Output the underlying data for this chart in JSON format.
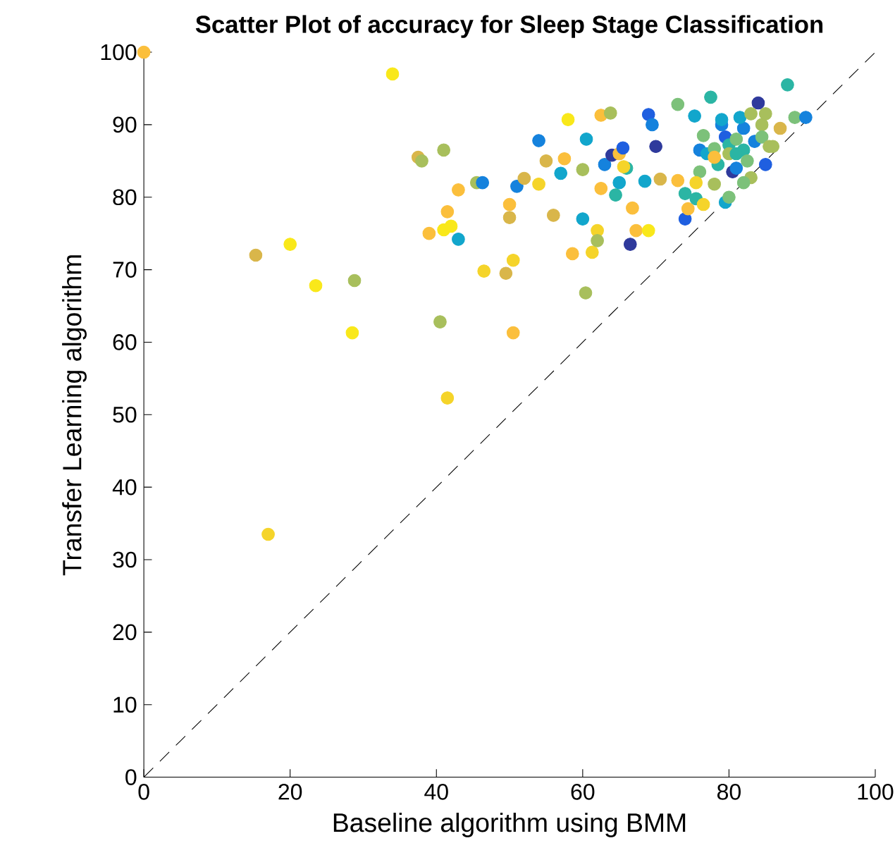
{
  "chart_data": {
    "type": "scatter",
    "title": "Scatter Plot of accuracy for Sleep Stage Classification",
    "xlabel": "Baseline algorithm using BMM",
    "ylabel": "Transfer Learning algorithm",
    "xlim": [
      0,
      100
    ],
    "ylim": [
      0,
      100
    ],
    "xticks": [
      0,
      20,
      40,
      60,
      80,
      100
    ],
    "yticks": [
      0,
      10,
      20,
      30,
      40,
      50,
      60,
      70,
      80,
      90,
      100
    ],
    "marker": "circle",
    "series": [
      {
        "x": [
          0,
          34,
          15.3,
          20,
          23.5,
          28.8,
          28.5,
          17,
          37.5,
          38,
          41,
          39,
          40.5,
          41,
          41.5,
          41.5,
          42,
          43,
          43,
          45.5,
          46.3,
          46.5,
          49.5,
          50,
          50,
          50.5,
          50.5,
          51,
          52,
          54,
          54,
          55,
          56,
          57.5,
          57,
          58,
          58.6,
          60,
          60,
          60.5,
          60.4,
          61.3,
          62,
          62,
          62.5,
          63.8,
          63,
          62.5,
          64,
          65,
          65,
          65.5,
          64.5,
          66,
          66.5,
          67.3,
          66.8,
          65.6,
          69,
          69.5,
          70,
          68.5,
          70.6,
          69,
          73,
          73,
          74,
          74,
          74.4,
          75.3,
          76.5,
          76,
          75.5,
          76.5,
          77.5,
          77,
          78,
          78,
          78.5,
          79,
          79.5,
          80,
          80.5,
          81,
          81,
          82,
          82,
          82.5,
          83,
          83.5,
          84,
          84.5,
          84.5,
          85,
          85.5,
          86,
          85,
          87,
          88,
          89,
          90.5,
          79,
          81.5,
          83,
          80,
          78,
          81,
          82,
          79.5,
          80,
          76,
          75.5
        ],
        "values": [
          100,
          97,
          72,
          73.5,
          67.8,
          68.5,
          61.3,
          33.5,
          85.5,
          85,
          86.5,
          75,
          62.8,
          75.5,
          78,
          52.3,
          76,
          74.2,
          81,
          82,
          82,
          69.8,
          69.5,
          77.2,
          79,
          71.3,
          61.3,
          81.5,
          82.6,
          81.8,
          87.8,
          85,
          77.5,
          85.3,
          83.3,
          90.7,
          72.2,
          77,
          83.8,
          88,
          66.8,
          72.4,
          75.4,
          74,
          91.3,
          91.6,
          84.5,
          81.2,
          85.8,
          82,
          86,
          86.8,
          80.3,
          84,
          73.5,
          75.4,
          78.5,
          84.2,
          91.4,
          90,
          87,
          82.2,
          82.5,
          75.4,
          92.8,
          82.3,
          77,
          80.5,
          78.4,
          91.2,
          88.5,
          86.5,
          79.8,
          79,
          93.8,
          86,
          81.8,
          86.7,
          84.5,
          90,
          88.3,
          87.2,
          83.5,
          88,
          84,
          89.5,
          86.5,
          85,
          82.7,
          87.7,
          93,
          90,
          88.3,
          84.5,
          87,
          87,
          91.5,
          89.5,
          95.5,
          91,
          91,
          90.7,
          91,
          91.5,
          86,
          85.5,
          86,
          82,
          79.3,
          80,
          83.5,
          82
        ],
        "colors": [
          "#fbbf3c",
          "#f9e81a",
          "#d9b64a",
          "#f9e81a",
          "#f9e81a",
          "#a8bf5c",
          "#f9e81a",
          "#f5d42a",
          "#d9b64a",
          "#a8bf5c",
          "#a8bf5c",
          "#fbbf3c",
          "#a8bf5c",
          "#f9e81a",
          "#fbbf3c",
          "#f5d42a",
          "#f9e81a",
          "#12a6cc",
          "#fbbf3c",
          "#a8bf5c",
          "#1582dd",
          "#f5d42a",
          "#d9b64a",
          "#d9b64a",
          "#fbbf3c",
          "#f5d42a",
          "#fbbf3c",
          "#1582dd",
          "#d9b64a",
          "#f5d42a",
          "#1582dd",
          "#d9b64a",
          "#d9b64a",
          "#fbbf3c",
          "#12a6cc",
          "#f9e81a",
          "#fbbf3c",
          "#12a6cc",
          "#a8bf5c",
          "#12a6cc",
          "#a8bf5c",
          "#f5d42a",
          "#f5d42a",
          "#a8bf5c",
          "#fbbf3c",
          "#a8bf5c",
          "#1582dd",
          "#fbbf3c",
          "#2f3a9c",
          "#12a6cc",
          "#fbbf3c",
          "#1f5fe0",
          "#2bb5a4",
          "#2bb5a4",
          "#2f3a9c",
          "#fbbf3c",
          "#fbbf3c",
          "#f5d42a",
          "#1f5fe0",
          "#1582dd",
          "#2f3a9c",
          "#12a6cc",
          "#d9b64a",
          "#f9e81a",
          "#7cc17a",
          "#fbbf3c",
          "#1f5fe0",
          "#2bb5a4",
          "#fbbf3c",
          "#12a6cc",
          "#7cc17a",
          "#1582dd",
          "#2bb5a4",
          "#f5d42a",
          "#2bb5a4",
          "#12a6cc",
          "#a8bf5c",
          "#7cc17a",
          "#2bb5a4",
          "#1582dd",
          "#1f5fe0",
          "#2bb5a4",
          "#2f3a9c",
          "#7cc17a",
          "#1582dd",
          "#1582dd",
          "#2bb5a4",
          "#7cc17a",
          "#a8bf5c",
          "#1582dd",
          "#2f3a9c",
          "#a8bf5c",
          "#7cc17a",
          "#1f5fe0",
          "#a8bf5c",
          "#a8bf5c",
          "#a8bf5c",
          "#d9b64a",
          "#2bb5a4",
          "#7cc17a",
          "#1582dd",
          "#12a6cc",
          "#12a6cc",
          "#a8bf5c",
          "#a8bf5c",
          "#fbbf3c",
          "#2bb5a4",
          "#7cc17a",
          "#12a6cc",
          "#7cc17a",
          "#7cc17a",
          "#f5d42a"
        ]
      },
      {
        "type": "line",
        "x": [
          0,
          100
        ],
        "values": [
          0,
          100
        ],
        "color": "#000000",
        "line_style": "dashed",
        "marker": "none"
      }
    ]
  }
}
